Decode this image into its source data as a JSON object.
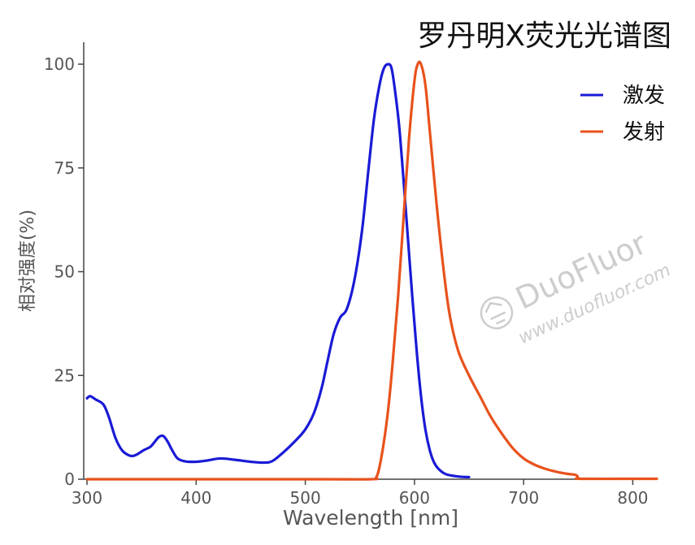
{
  "chart_data": {
    "type": "line",
    "title": "罗丹明X荧光光谱图",
    "xlabel": "Wavelength [nm]",
    "ylabel": "相对强度(%)",
    "xlim": [
      297,
      822
    ],
    "ylim": [
      0,
      100
    ],
    "x_ticks": [
      300,
      400,
      500,
      600,
      700,
      800
    ],
    "y_ticks": [
      0,
      25,
      50,
      75,
      100
    ],
    "legend_position": "top-right",
    "grid": false,
    "series": [
      {
        "name": "激发",
        "color": "#1a1ad6",
        "x": [
          300,
          303,
          308,
          315,
          320,
          326,
          332,
          338,
          342,
          346,
          352,
          358,
          362,
          366,
          370,
          374,
          378,
          383,
          390,
          400,
          410,
          422,
          435,
          450,
          462,
          470,
          480,
          490,
          500,
          508,
          515,
          520,
          526,
          532,
          538,
          545,
          552,
          558,
          563,
          568,
          572,
          576,
          579,
          582,
          586,
          590,
          594,
          598,
          602,
          606,
          610,
          614,
          618,
          622,
          626,
          630,
          636,
          642,
          650
        ],
        "y": [
          19.5,
          20,
          19.2,
          18,
          15,
          10,
          7,
          5.8,
          5.6,
          6,
          7,
          7.8,
          9,
          10.2,
          10.4,
          9,
          7,
          5,
          4.3,
          4.2,
          4.5,
          5,
          4.7,
          4.2,
          4.0,
          4.4,
          6.5,
          9,
          12,
          16,
          22,
          28,
          35,
          39,
          41,
          48,
          60,
          75,
          87,
          95,
          99,
          100,
          99,
          94,
          85,
          72,
          58,
          44,
          31,
          20,
          12,
          7,
          4,
          2.5,
          1.6,
          1.1,
          0.8,
          0.6,
          0.5
        ]
      },
      {
        "name": "发射",
        "color": "#e8521c",
        "x": [
          300,
          500,
          560,
          565,
          568,
          572,
          576,
          580,
          585,
          590,
          595,
          600,
          603,
          606,
          610,
          614,
          620,
          626,
          632,
          640,
          650,
          660,
          670,
          680,
          690,
          700,
          710,
          720,
          730,
          740,
          748,
          750,
          752,
          800,
          822
        ],
        "y": [
          0,
          0,
          0,
          0.5,
          3,
          9,
          17,
          28,
          44,
          63,
          82,
          96,
          100,
          100,
          95,
          84,
          67,
          52,
          40,
          31,
          25,
          20,
          15,
          11,
          7.5,
          5,
          3.5,
          2.5,
          1.8,
          1.3,
          1,
          0.3,
          0.1,
          0.1,
          0.1
        ]
      }
    ]
  },
  "watermark": {
    "brand": "DuoFluor",
    "url": "www.duofluor.com",
    "logo_icon": "duofluor-logo-icon"
  }
}
